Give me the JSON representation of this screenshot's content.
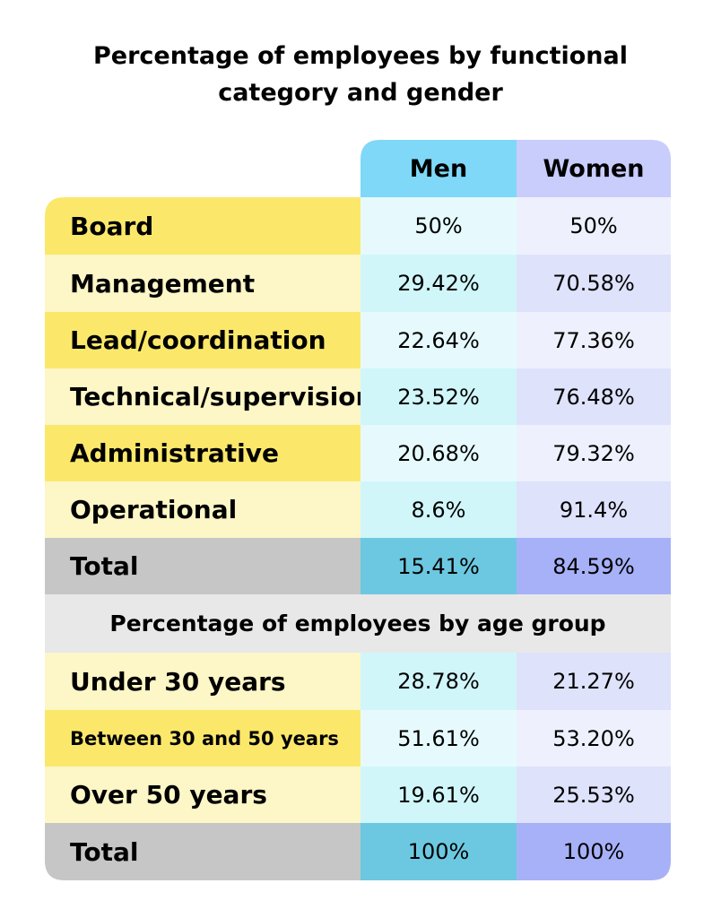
{
  "title": "Percentage of employees by functional category and gender",
  "title_lines": [
    "Percentage of employees by functional",
    "category and gender"
  ],
  "columns": [
    "Men",
    "Women"
  ],
  "colors": {
    "label_yellow": "#fbe86b",
    "label_cream": "#fdf6c6",
    "men_header": "#7fd8f8",
    "women_header": "#c8cdfb",
    "men_light": "#e6fafd",
    "men_mid": "#d0f6fa",
    "women_light": "#eef1fd",
    "women_mid": "#dee2fb",
    "total_label": "#c6c6c6",
    "men_total": "#6cc8e0",
    "women_total": "#a7b1f8",
    "section_header": "#e8e8e8"
  },
  "functional_rows": [
    {
      "label": "Board",
      "men": "50%",
      "women": "50%"
    },
    {
      "label": "Management",
      "men": "29.42%",
      "women": "70.58%"
    },
    {
      "label": "Lead/coordination",
      "men": "22.64%",
      "women": "77.36%"
    },
    {
      "label": "Technical/supervision",
      "men": "23.52%",
      "women": "76.48%"
    },
    {
      "label": "Administrative",
      "men": "20.68%",
      "women": "79.32%"
    },
    {
      "label": "Operational",
      "men": "8.6%",
      "women": "91.4%"
    }
  ],
  "functional_total": {
    "label": "Total",
    "men": "15.41%",
    "women": "84.59%"
  },
  "age_section_title": "Percentage of employees by age group",
  "age_rows": [
    {
      "label": "Under 30 years",
      "men": "28.78%",
      "women": "21.27%"
    },
    {
      "label": "Between 30 and 50 years",
      "men": "51.61%",
      "women": "53.20%"
    },
    {
      "label": "Over 50 years",
      "men": "19.61%",
      "women": "25.53%"
    }
  ],
  "age_total": {
    "label": "Total",
    "men": "100%",
    "women": "100%"
  },
  "chart_data": {
    "type": "table",
    "title": "Percentage of employees by functional category and gender",
    "columns": [
      "Men",
      "Women"
    ],
    "tables": [
      {
        "rows": [
          "Board",
          "Management",
          "Lead/coordination",
          "Technical/supervision",
          "Administrative",
          "Operational",
          "Total"
        ],
        "series": [
          {
            "name": "Men",
            "values": [
              50,
              29.42,
              22.64,
              23.52,
              20.68,
              8.6,
              15.41
            ]
          },
          {
            "name": "Women",
            "values": [
              50,
              70.58,
              77.36,
              76.48,
              79.32,
              91.4,
              84.59
            ]
          }
        ]
      },
      {
        "title": "Percentage of employees by age group",
        "rows": [
          "Under 30 years",
          "Between 30 and 50 years",
          "Over 50 years",
          "Total"
        ],
        "series": [
          {
            "name": "Men",
            "values": [
              28.78,
              51.61,
              19.61,
              100
            ]
          },
          {
            "name": "Women",
            "values": [
              21.27,
              53.2,
              25.53,
              100
            ]
          }
        ]
      }
    ]
  }
}
